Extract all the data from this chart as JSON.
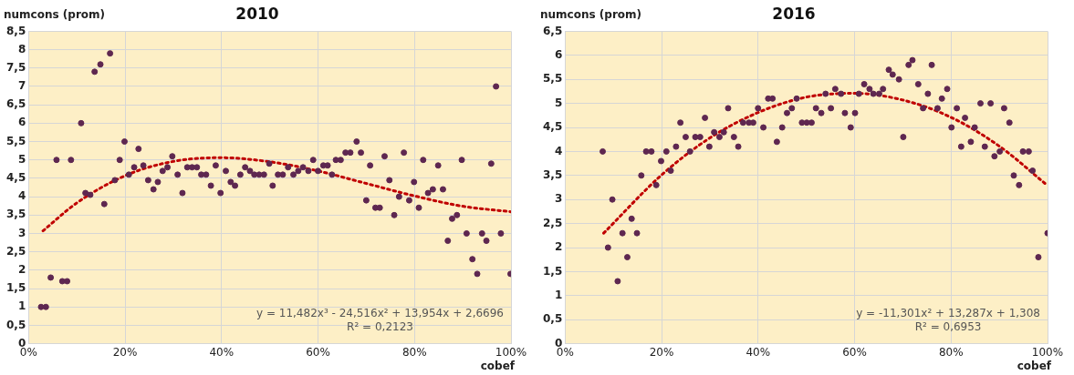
{
  "chart_data": [
    {
      "type": "scatter",
      "title": "2010",
      "xlabel": "cobef",
      "ylabel": "numcons (prom)",
      "annotations": [
        "y = 11,482x³ - 24,516x² + 13,954x + 2,6696",
        "R² = 0,2123"
      ],
      "xlim": [
        0,
        100
      ],
      "xticks": [
        {
          "value": 0,
          "label": "0%"
        },
        {
          "value": 20,
          "label": "20%"
        },
        {
          "value": 40,
          "label": "40%"
        },
        {
          "value": 60,
          "label": "60%"
        },
        {
          "value": 80,
          "label": "80%"
        },
        {
          "value": 100,
          "label": "100%"
        }
      ],
      "ylim": [
        0,
        8.5
      ],
      "yticks": [
        0,
        {
          "value": 0.5,
          "label": "0,5"
        },
        1,
        {
          "value": 1.5,
          "label": "1,5"
        },
        2,
        {
          "value": 2.5,
          "label": "2,5"
        },
        3,
        {
          "value": 3.5,
          "label": "3,5"
        },
        4,
        {
          "value": 4.5,
          "label": "4,5"
        },
        5,
        {
          "value": 5.5,
          "label": "5,5"
        },
        6,
        {
          "value": 6.5,
          "label": "6,5"
        },
        7,
        {
          "value": 7.5,
          "label": "7,5"
        },
        8,
        {
          "value": 8.5,
          "label": "8,5"
        }
      ],
      "grid": true,
      "legend": false,
      "series": [
        {
          "type": "scatter",
          "marker": "circle",
          "color": "#5e2750",
          "x": [
            2.6,
            3.6,
            4.6,
            5.8,
            7.0,
            8.0,
            8.8,
            10.9,
            11.8,
            12.8,
            13.7,
            14.9,
            15.7,
            16.9,
            17.9,
            18.9,
            19.9,
            20.8,
            21.9,
            22.8,
            23.8,
            24.8,
            25.9,
            26.8,
            27.8,
            28.8,
            29.8,
            30.9,
            31.9,
            32.9,
            33.9,
            34.9,
            35.8,
            36.8,
            37.8,
            38.8,
            39.8,
            40.9,
            41.9,
            42.8,
            43.9,
            44.9,
            45.9,
            46.8,
            47.8,
            48.8,
            49.9,
            50.6,
            51.7,
            52.7,
            53.8,
            54.9,
            55.9,
            56.9,
            58.0,
            59.0,
            60.0,
            61.1,
            62.0,
            62.9,
            63.7,
            64.7,
            65.7,
            66.7,
            68.0,
            68.9,
            70.0,
            70.8,
            71.9,
            72.8,
            73.8,
            74.8,
            75.8,
            76.8,
            77.8,
            78.9,
            79.9,
            80.9,
            81.8,
            82.8,
            83.8,
            84.9,
            85.9,
            86.9,
            87.8,
            88.8,
            89.8,
            90.8,
            92.0,
            93.0,
            94.0,
            94.9,
            95.9,
            96.9,
            97.9,
            99.9
          ],
          "values": [
            1,
            1,
            1.8,
            5,
            1.7,
            1.7,
            5,
            6,
            4.1,
            4.05,
            7.4,
            7.6,
            3.8,
            7.9,
            4.45,
            5,
            5.5,
            4.6,
            4.8,
            5.3,
            4.85,
            4.45,
            4.2,
            4.4,
            4.7,
            4.8,
            5.1,
            4.6,
            4.1,
            4.8,
            4.8,
            4.8,
            4.6,
            4.6,
            4.3,
            4.85,
            4.1,
            4.7,
            4.4,
            4.3,
            4.6,
            4.8,
            4.7,
            4.6,
            4.6,
            4.6,
            4.9,
            4.3,
            4.6,
            4.6,
            4.8,
            4.6,
            4.7,
            4.8,
            4.7,
            5,
            4.7,
            4.85,
            4.85,
            4.6,
            5,
            5,
            5.2,
            5.2,
            5.5,
            5.2,
            3.9,
            4.85,
            3.7,
            3.7,
            5.1,
            4.45,
            3.5,
            4,
            5.2,
            3.9,
            4.4,
            3.7,
            5,
            4.1,
            4.2,
            4.85,
            4.2,
            2.8,
            3.4,
            3.5,
            5,
            3,
            2.3,
            1.9,
            3,
            2.8,
            4.9,
            7,
            3,
            1.9
          ]
        },
        {
          "type": "line",
          "marker": "none",
          "line_style": "dotted",
          "color": "#c00000",
          "x": [
            3,
            10,
            20,
            30,
            40,
            50,
            60,
            70,
            80,
            90,
            100
          ],
          "values": [
            3.07,
            3.83,
            4.57,
            4.96,
            5.06,
            4.95,
            4.7,
            4.36,
            4.02,
            3.74,
            3.59
          ]
        }
      ]
    },
    {
      "type": "scatter",
      "title": "2016",
      "xlabel": "cobef",
      "ylabel": "numcons (prom)",
      "annotations": [
        "y = -11,301x² + 13,287x + 1,308",
        "R² = 0,6953"
      ],
      "xlim": [
        0,
        100
      ],
      "xticks": [
        {
          "value": 0,
          "label": "0%"
        },
        {
          "value": 20,
          "label": "20%"
        },
        {
          "value": 40,
          "label": "40%"
        },
        {
          "value": 60,
          "label": "60%"
        },
        {
          "value": 80,
          "label": "80%"
        },
        {
          "value": 100,
          "label": "100%"
        }
      ],
      "ylim": [
        0,
        6.5
      ],
      "yticks": [
        0,
        {
          "value": 0.5,
          "label": "0,5"
        },
        1,
        {
          "value": 1.5,
          "label": "1,5"
        },
        2,
        {
          "value": 2.5,
          "label": "2,5"
        },
        3,
        {
          "value": 3.5,
          "label": "3,5"
        },
        4,
        {
          "value": 4.5,
          "label": "4,5"
        },
        5,
        {
          "value": 5.5,
          "label": "5,5"
        },
        6,
        {
          "value": 6.5,
          "label": "6,5"
        }
      ],
      "grid": true,
      "legend": false,
      "series": [
        {
          "type": "scatter",
          "marker": "circle",
          "color": "#5e2750",
          "x": [
            7.8,
            8.9,
            9.8,
            10.9,
            11.9,
            12.9,
            13.8,
            14.9,
            15.8,
            16.8,
            17.9,
            18.9,
            19.9,
            21.0,
            21.9,
            23.0,
            23.9,
            25.0,
            25.9,
            27.0,
            28.0,
            29.0,
            29.9,
            30.9,
            32.0,
            32.9,
            33.8,
            35.0,
            35.9,
            36.9,
            38.1,
            39.0,
            40.0,
            41.1,
            42.1,
            43.0,
            43.9,
            45.0,
            46.0,
            47.0,
            48.0,
            49.1,
            50.1,
            51.1,
            52.0,
            53.1,
            54.0,
            55.1,
            56.0,
            57.2,
            58.0,
            59.2,
            60.1,
            60.9,
            62.0,
            63.1,
            63.9,
            65.1,
            65.9,
            67.1,
            67.9,
            69.2,
            70.1,
            71.2,
            72.0,
            73.2,
            74.2,
            75.2,
            76.0,
            77.2,
            78.1,
            79.2,
            80.1,
            81.2,
            82.1,
            82.9,
            84.1,
            84.9,
            86.1,
            87.0,
            88.2,
            89.0,
            90.1,
            91.0,
            92.1,
            93.0,
            94.1,
            94.9,
            96.1,
            96.9,
            98.1,
            100
          ],
          "values": [
            4,
            2,
            3,
            1.3,
            2.3,
            1.8,
            2.6,
            2.3,
            3.5,
            4,
            4,
            3.3,
            3.8,
            4,
            3.6,
            4.1,
            4.6,
            4.3,
            4,
            4.3,
            4.3,
            4.7,
            4.1,
            4.4,
            4.3,
            4.4,
            4.9,
            4.3,
            4.1,
            4.6,
            4.6,
            4.6,
            4.9,
            4.5,
            5.1,
            5.1,
            4.2,
            4.5,
            4.8,
            4.9,
            5.1,
            4.6,
            4.6,
            4.6,
            4.9,
            4.8,
            5.2,
            4.9,
            5.3,
            5.2,
            4.8,
            4.5,
            4.8,
            5.2,
            5.4,
            5.3,
            5.2,
            5.2,
            5.3,
            5.7,
            5.6,
            5.5,
            4.3,
            5.8,
            5.9,
            5.4,
            4.9,
            5.2,
            5.8,
            4.9,
            5.1,
            5.3,
            4.5,
            4.9,
            4.1,
            4.7,
            4.2,
            4.5,
            5,
            4.1,
            5,
            3.9,
            4,
            4.9,
            4.6,
            3.5,
            3.3,
            4,
            4,
            3.6,
            1.8,
            2.3
          ]
        },
        {
          "type": "line",
          "marker": "none",
          "line_style": "dotted",
          "color": "#c00000",
          "x": [
            8,
            20,
            30,
            40,
            50,
            60,
            70,
            80,
            90,
            100
          ],
          "values": [
            2.3,
            3.51,
            4.28,
            4.81,
            5.13,
            5.21,
            5.07,
            4.71,
            4.11,
            3.29
          ]
        }
      ]
    }
  ]
}
